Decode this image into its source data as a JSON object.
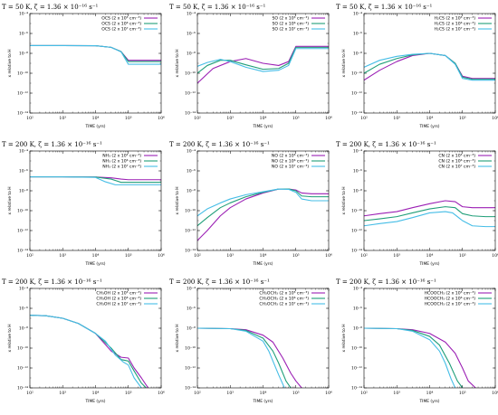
{
  "colors": {
    "high": "#9b1fb4",
    "mid": "#1f9e78",
    "low": "#45bde6"
  },
  "chart_data": [
    {
      "type": "line",
      "title": "T = 50 K, ζ = 1.36 × 10⁻¹⁶ s⁻¹",
      "xlabel": "TIME (yrs)",
      "ylabel": "x relative to H",
      "xlim": [
        100,
        1000000
      ],
      "ylim": [
        1e-14,
        0.0001
      ],
      "x_scale": "log",
      "y_scale": "log",
      "legend_position": "top-right",
      "x_tick_labels": [
        "10²",
        "10³",
        "10⁴",
        "10⁵",
        "10⁶"
      ],
      "y_tick_labels": [
        "10⁻¹⁴",
        "10⁻¹²",
        "10⁻¹⁰",
        "10⁻⁸",
        "10⁻⁶",
        "10⁻⁴"
      ],
      "series": [
        {
          "name": "OCS (2 x 10⁵ cm⁻³)",
          "color": "#9b1fb4",
          "x": [
            100,
            1000,
            10000,
            30000,
            60000,
            100000,
            150000,
            200000,
            1000000
          ],
          "y": [
            6e-08,
            6e-08,
            5.8e-08,
            4e-08,
            1.5e-08,
            2e-09,
            2e-09,
            2e-09,
            2e-09
          ]
        },
        {
          "name": "OCS (2 x 10⁶ cm⁻³)",
          "color": "#1f9e78",
          "x": [
            100,
            1000,
            10000,
            30000,
            60000,
            100000,
            150000,
            200000,
            1000000
          ],
          "y": [
            6e-08,
            6e-08,
            5.8e-08,
            4e-08,
            1.5e-08,
            1.5e-09,
            1.5e-09,
            1.5e-09,
            1.5e-09
          ]
        },
        {
          "name": "OCS (2 x 10⁷ cm⁻³)",
          "color": "#45bde6",
          "x": [
            100,
            1000,
            10000,
            30000,
            60000,
            100000,
            150000,
            200000,
            1000000
          ],
          "y": [
            6e-08,
            6e-08,
            5.8e-08,
            4e-08,
            1.4e-08,
            8e-10,
            8e-10,
            8e-10,
            8e-10
          ]
        }
      ]
    },
    {
      "type": "line",
      "title": "T = 50 K, ζ = 1.36 × 10⁻¹⁶ s⁻¹",
      "xlabel": "TIME (yrs)",
      "ylabel": "x relative to H",
      "xlim": [
        100,
        1000000
      ],
      "ylim": [
        1e-14,
        0.0001
      ],
      "x_scale": "log",
      "y_scale": "log",
      "legend_position": "top-right",
      "x_tick_labels": [
        "10²",
        "10³",
        "10⁴",
        "10⁵",
        "10⁶"
      ],
      "y_tick_labels": [
        "10⁻¹⁴",
        "10⁻¹²",
        "10⁻¹⁰",
        "10⁻⁸",
        "10⁻⁶",
        "10⁻⁴"
      ],
      "series": [
        {
          "name": "SO (2 x 10⁵ cm⁻³)",
          "color": "#9b1fb4",
          "x": [
            100,
            300,
            1000,
            3000,
            10000,
            30000,
            60000,
            100000,
            200000,
            1000000
          ],
          "y": [
            1e-11,
            3e-10,
            1.5e-09,
            3e-09,
            1e-09,
            6e-10,
            1.5e-09,
            5e-08,
            5e-08,
            5e-08
          ]
        },
        {
          "name": "SO (2 x 10⁶ cm⁻³)",
          "color": "#1f9e78",
          "x": [
            100,
            200,
            500,
            1000,
            3000,
            10000,
            30000,
            60000,
            100000,
            200000,
            1000000
          ],
          "y": [
            1e-10,
            6e-10,
            2e-09,
            2e-09,
            7e-10,
            2.5e-10,
            3e-10,
            1e-09,
            4e-08,
            4e-08,
            4e-08
          ]
        },
        {
          "name": "SO (2 x 10⁷ cm⁻³)",
          "color": "#45bde6",
          "x": [
            100,
            200,
            500,
            1000,
            3000,
            10000,
            30000,
            60000,
            100000,
            200000,
            1000000
          ],
          "y": [
            5e-10,
            1.2e-09,
            2.5e-09,
            1.5e-09,
            4e-10,
            1.5e-10,
            2e-10,
            6e-10,
            3e-08,
            3e-08,
            3e-08
          ]
        }
      ]
    },
    {
      "type": "line",
      "title": "T = 50 K, ζ = 1.36 × 10⁻¹⁶ s⁻¹",
      "xlabel": "TIME (yrs)",
      "ylabel": "x relative to H",
      "xlim": [
        100,
        1000000
      ],
      "ylim": [
        1e-14,
        0.0001
      ],
      "x_scale": "log",
      "y_scale": "log",
      "legend_position": "top-right",
      "x_tick_labels": [
        "10²",
        "10³",
        "10⁴",
        "10⁵",
        "10⁶"
      ],
      "y_tick_labels": [
        "10⁻¹⁴",
        "10⁻¹²",
        "10⁻¹⁰",
        "10⁻⁸",
        "10⁻⁶",
        "10⁻⁴"
      ],
      "series": [
        {
          "name": "H₂CS (2 x 10⁵ cm⁻³)",
          "color": "#9b1fb4",
          "x": [
            100,
            300,
            1000,
            3000,
            10000,
            30000,
            60000,
            100000,
            200000,
            1000000
          ],
          "y": [
            2e-11,
            2e-10,
            1.5e-09,
            6e-09,
            1e-08,
            6e-09,
            1e-09,
            5e-11,
            3e-11,
            3e-11
          ]
        },
        {
          "name": "H₂CS (2 x 10⁶ cm⁻³)",
          "color": "#1f9e78",
          "x": [
            100,
            300,
            1000,
            3000,
            10000,
            30000,
            60000,
            100000,
            200000,
            1000000
          ],
          "y": [
            1e-10,
            8e-10,
            3e-09,
            7e-09,
            1e-08,
            6e-09,
            1e-09,
            4e-11,
            2.5e-11,
            2.5e-11
          ]
        },
        {
          "name": "H₂CS (2 x 10⁷ cm⁻³)",
          "color": "#45bde6",
          "x": [
            100,
            300,
            1000,
            3000,
            10000,
            30000,
            60000,
            100000,
            200000,
            1000000
          ],
          "y": [
            4e-10,
            2e-09,
            5e-09,
            8e-09,
            1e-08,
            6e-09,
            8e-10,
            3e-11,
            2e-11,
            2e-11
          ]
        }
      ]
    },
    {
      "type": "line",
      "title": "T = 200 K, ζ = 1.36 × 10⁻¹⁶ s⁻¹",
      "xlabel": "TIME (yrs)",
      "ylabel": "x relative to H",
      "xlim": [
        100,
        1000000
      ],
      "ylim": [
        1e-14,
        0.0001
      ],
      "x_scale": "log",
      "y_scale": "log",
      "legend_position": "top-right",
      "x_tick_labels": [
        "10²",
        "10³",
        "10⁴",
        "10⁵",
        "10⁶"
      ],
      "y_tick_labels": [
        "10⁻¹⁴",
        "10⁻¹²",
        "10⁻¹⁰",
        "10⁻⁸",
        "10⁻⁶",
        "10⁻⁴"
      ],
      "series": [
        {
          "name": "NH₃ (2 x 10⁵ cm⁻³)",
          "color": "#9b1fb4",
          "x": [
            100,
            1000,
            10000,
            30000,
            60000,
            100000,
            200000,
            1000000
          ],
          "y": [
            2.5e-07,
            2.5e-07,
            2.4e-07,
            2e-07,
            1.5e-07,
            1.3e-07,
            1.3e-07,
            1.3e-07
          ]
        },
        {
          "name": "NH₃ (2 x 10⁶ cm⁻³)",
          "color": "#1f9e78",
          "x": [
            100,
            1000,
            10000,
            30000,
            60000,
            100000,
            200000,
            1000000
          ],
          "y": [
            2.5e-07,
            2.5e-07,
            2.4e-07,
            1.5e-07,
            7e-08,
            7e-08,
            7e-08,
            7e-08
          ]
        },
        {
          "name": "NH₃ (2 x 10⁷ cm⁻³)",
          "color": "#45bde6",
          "x": [
            100,
            1000,
            10000,
            20000,
            40000,
            100000,
            200000,
            1000000
          ],
          "y": [
            2.5e-07,
            2.5e-07,
            2.2e-07,
            8e-08,
            4e-08,
            4e-08,
            4e-08,
            4e-08
          ]
        }
      ]
    },
    {
      "type": "line",
      "title": "T = 200 K, ζ = 1.36 × 10⁻¹⁶ s⁻¹",
      "xlabel": "TIME (yrs)",
      "ylabel": "x relative to H",
      "xlim": [
        100,
        1000000
      ],
      "ylim": [
        1e-14,
        0.0001
      ],
      "x_scale": "log",
      "y_scale": "log",
      "legend_position": "top-right",
      "x_tick_labels": [
        "10²",
        "10³",
        "10⁴",
        "10⁵",
        "10⁶"
      ],
      "y_tick_labels": [
        "10⁻¹⁴",
        "10⁻¹²",
        "10⁻¹⁰",
        "10⁻⁸",
        "10⁻⁶",
        "10⁻⁴"
      ],
      "series": [
        {
          "name": "NO (2 x 10⁵ cm⁻³)",
          "color": "#9b1fb4",
          "x": [
            100,
            200,
            500,
            1000,
            3000,
            10000,
            30000,
            60000,
            100000,
            150000,
            300000,
            1000000
          ],
          "y": [
            1e-13,
            1e-12,
            3e-11,
            2e-10,
            1.5e-09,
            6e-09,
            1.5e-08,
            1.5e-08,
            1.2e-08,
            6e-09,
            5e-09,
            5e-09
          ]
        },
        {
          "name": "NO (2 x 10⁶ cm⁻³)",
          "color": "#1f9e78",
          "x": [
            100,
            200,
            500,
            1000,
            3000,
            10000,
            30000,
            60000,
            100000,
            150000,
            300000,
            1000000
          ],
          "y": [
            3e-12,
            2e-11,
            2e-10,
            6e-10,
            2.5e-09,
            7e-09,
            1.5e-08,
            1.5e-08,
            1e-08,
            3e-09,
            2.5e-09,
            2.5e-09
          ]
        },
        {
          "name": "NO (2 x 10⁷ cm⁻³)",
          "color": "#45bde6",
          "x": [
            100,
            200,
            500,
            1000,
            3000,
            10000,
            30000,
            60000,
            100000,
            150000,
            300000,
            1000000
          ],
          "y": [
            3e-11,
            1.5e-10,
            6e-10,
            1.5e-09,
            4e-09,
            8e-09,
            1.5e-08,
            1.4e-08,
            7e-09,
            1.5e-09,
            1e-09,
            1e-09
          ]
        }
      ]
    },
    {
      "type": "line",
      "title": "T = 200 K, ζ = 1.36 × 10⁻¹⁶ s⁻¹",
      "xlabel": "TIME (yrs)",
      "ylabel": "x relative to H",
      "xlim": [
        100,
        1000000
      ],
      "ylim": [
        1e-14,
        0.0001
      ],
      "x_scale": "log",
      "y_scale": "log",
      "legend_position": "top-right",
      "x_tick_labels": [
        "10²",
        "10³",
        "10⁴",
        "10⁵",
        "10⁶"
      ],
      "y_tick_labels": [
        "10⁻¹⁴",
        "10⁻¹²",
        "10⁻¹⁰",
        "10⁻⁸",
        "10⁻⁶",
        "10⁻⁴"
      ],
      "series": [
        {
          "name": "CN (2 x 10⁵ cm⁻³)",
          "color": "#9b1fb4",
          "x": [
            100,
            300,
            1000,
            3000,
            10000,
            30000,
            60000,
            100000,
            200000,
            500000,
            1000000
          ],
          "y": [
            3e-11,
            5e-11,
            8e-11,
            2e-10,
            5e-10,
            1e-09,
            8e-10,
            2.5e-10,
            2e-10,
            2e-10,
            2e-10
          ]
        },
        {
          "name": "CN (2 x 10⁶ cm⁻³)",
          "color": "#1f9e78",
          "x": [
            100,
            300,
            1000,
            3000,
            10000,
            30000,
            60000,
            100000,
            200000,
            500000,
            1000000
          ],
          "y": [
            1e-11,
            1.5e-11,
            2.5e-11,
            6e-11,
            1.5e-10,
            2.5e-10,
            2e-10,
            5e-11,
            3e-11,
            2.5e-11,
            2.5e-11
          ]
        },
        {
          "name": "CN (2 x 10⁷ cm⁻³)",
          "color": "#45bde6",
          "x": [
            100,
            300,
            1000,
            3000,
            10000,
            30000,
            50000,
            100000,
            200000,
            500000,
            1000000
          ],
          "y": [
            3e-12,
            5e-12,
            8e-12,
            2e-11,
            6e-11,
            8e-11,
            6e-11,
            1e-11,
            3e-12,
            2.5e-12,
            2.5e-12
          ]
        }
      ]
    },
    {
      "type": "line",
      "title": "T = 200 K, ζ = 1.36 × 10⁻¹⁶ s⁻¹",
      "xlabel": "TIME (yrs)",
      "ylabel": "x relative to H",
      "xlim": [
        100,
        1000000
      ],
      "ylim": [
        1e-14,
        0.0001
      ],
      "x_scale": "log",
      "y_scale": "log",
      "legend_position": "top-right",
      "x_tick_labels": [
        "10²",
        "10³",
        "10⁴",
        "10⁵",
        "10⁶"
      ],
      "y_tick_labels": [
        "10⁻¹⁴",
        "10⁻¹²",
        "10⁻¹⁰",
        "10⁻⁸",
        "10⁻⁶",
        "10⁻⁴"
      ],
      "series": [
        {
          "name": "CH₃OH (2 x 10⁵ cm⁻³)",
          "color": "#9b1fb4",
          "x": [
            100,
            300,
            1000,
            3000,
            10000,
            30000,
            60000,
            100000,
            150000,
            250000,
            400000
          ],
          "y": [
            2e-07,
            1.8e-07,
            1e-07,
            3e-08,
            3e-09,
            5e-11,
            1.2e-11,
            1e-11,
            1e-12,
            1e-13,
            1e-14
          ]
        },
        {
          "name": "CH₃OH (2 x 10⁶ cm⁻³)",
          "color": "#1f9e78",
          "x": [
            100,
            300,
            1000,
            3000,
            10000,
            30000,
            60000,
            100000,
            150000,
            250000,
            350000
          ],
          "y": [
            2e-07,
            1.8e-07,
            1e-07,
            3e-08,
            3e-09,
            1e-10,
            7e-12,
            5e-12,
            5e-13,
            3e-14,
            1e-14
          ]
        },
        {
          "name": "CH₃OH (2 x 10⁷ cm⁻³)",
          "color": "#45bde6",
          "x": [
            100,
            300,
            1000,
            3000,
            10000,
            20000,
            40000,
            70000,
            100000,
            150000,
            250000
          ],
          "y": [
            2e-07,
            1.8e-07,
            1e-07,
            3e-08,
            3e-09,
            5e-10,
            2e-11,
            4e-12,
            2e-12,
            1e-13,
            1e-14
          ]
        }
      ]
    },
    {
      "type": "line",
      "title": "T = 200 K, ζ = 1.36 × 10⁻¹⁶ s⁻¹",
      "xlabel": "TIME (yrs)",
      "ylabel": "x relative to H",
      "xlim": [
        100,
        1000000
      ],
      "ylim": [
        1e-14,
        0.0001
      ],
      "x_scale": "log",
      "y_scale": "log",
      "legend_position": "top-right",
      "x_tick_labels": [
        "10²",
        "10³",
        "10⁴",
        "10⁵",
        "10⁶"
      ],
      "y_tick_labels": [
        "10⁻¹⁴",
        "10⁻¹²",
        "10⁻¹⁰",
        "10⁻⁸",
        "10⁻⁶",
        "10⁻⁴"
      ],
      "series": [
        {
          "name": "CH₃OCH₃ (2 x 10⁵ cm⁻³)",
          "color": "#9b1fb4",
          "x": [
            100,
            1000,
            3000,
            10000,
            20000,
            40000,
            70000,
            100000,
            150000
          ],
          "y": [
            1e-08,
            9e-09,
            7e-09,
            2e-09,
            4e-10,
            1e-11,
            3e-13,
            5e-14,
            1e-14
          ]
        },
        {
          "name": "CH₃OCH₃ (2 x 10⁶ cm⁻³)",
          "color": "#1f9e78",
          "x": [
            100,
            1000,
            3000,
            10000,
            20000,
            30000,
            50000,
            70000
          ],
          "y": [
            1e-08,
            9e-09,
            6e-09,
            1e-09,
            5e-11,
            3e-12,
            5e-14,
            1e-14
          ]
        },
        {
          "name": "CH₃OCH₃ (2 x 10⁷ cm⁻³)",
          "color": "#45bde6",
          "x": [
            100,
            1000,
            3000,
            10000,
            15000,
            20000,
            30000,
            45000
          ],
          "y": [
            1e-08,
            9e-09,
            5e-09,
            5e-10,
            5e-11,
            5e-12,
            2e-13,
            1e-14
          ]
        }
      ]
    },
    {
      "type": "line",
      "title": "T = 200 K, ζ = 1.36 × 10⁻¹⁶ s⁻¹",
      "xlabel": "TIME (yrs)",
      "ylabel": "x relative to H",
      "xlim": [
        100,
        1000000
      ],
      "ylim": [
        1e-14,
        0.0001
      ],
      "x_scale": "log",
      "y_scale": "log",
      "legend_position": "top-right",
      "x_tick_labels": [
        "10²",
        "10³",
        "10⁴",
        "10⁵",
        "10⁶"
      ],
      "y_tick_labels": [
        "10⁻¹⁴",
        "10⁻¹²",
        "10⁻¹⁰",
        "10⁻⁸",
        "10⁻⁶",
        "10⁻⁴"
      ],
      "series": [
        {
          "name": "HCOOCH₃ (2 x 10⁵ cm⁻³)",
          "color": "#9b1fb4",
          "x": [
            100,
            1000,
            3000,
            10000,
            30000,
            60000,
            100000,
            150000,
            250000
          ],
          "y": [
            1e-08,
            9e-09,
            7e-09,
            3e-09,
            4e-10,
            3e-11,
            1e-12,
            5e-14,
            1e-14
          ]
        },
        {
          "name": "HCOOCH₃ (2 x 10⁶ cm⁻³)",
          "color": "#1f9e78",
          "x": [
            100,
            1000,
            3000,
            10000,
            20000,
            40000,
            70000,
            100000
          ],
          "y": [
            1e-08,
            9e-09,
            6e-09,
            1.5e-09,
            2e-10,
            3e-12,
            5e-14,
            1e-14
          ]
        },
        {
          "name": "HCOOCH₃ (2 x 10⁷ cm⁻³)",
          "color": "#45bde6",
          "x": [
            100,
            1000,
            3000,
            10000,
            20000,
            30000,
            45000,
            60000
          ],
          "y": [
            1e-08,
            9e-09,
            5e-09,
            7e-10,
            5e-11,
            3e-12,
            8e-14,
            1e-14
          ]
        }
      ]
    }
  ]
}
